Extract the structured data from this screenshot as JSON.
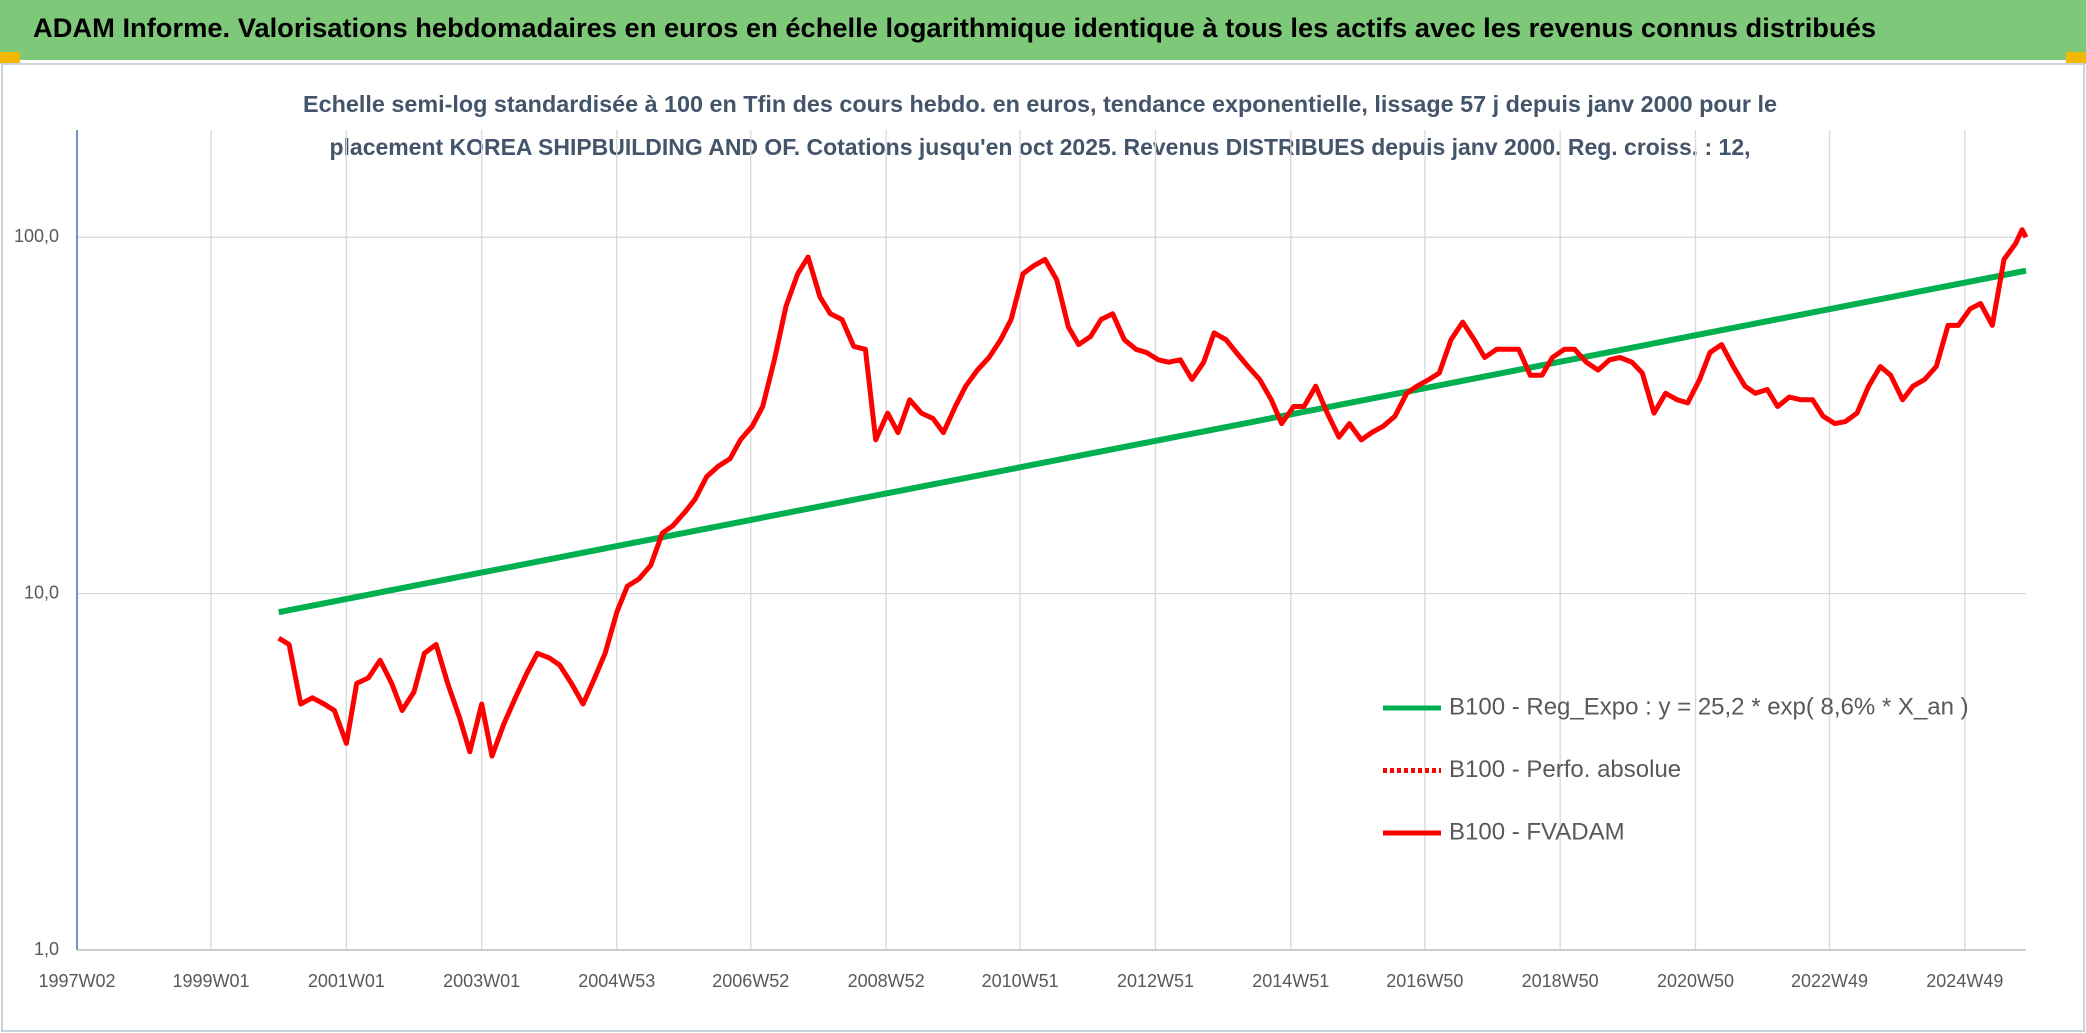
{
  "chart_data": {
    "type": "line",
    "title": "ADAM Informe. Valorisations hebdomadaires en euros en échelle logarithmique identique à tous les actifs avec les revenus connus distribués",
    "subtitle": [
      "Echelle semi-log standardisée à 100 en Tfin des cours hebdo. en euros, tendance exponentielle, lissage 57 j depuis janv 2000 pour le",
      "placement KOREA SHIPBUILDING AND OF. Cotations jusqu'en oct 2025. Revenus DISTRIBUES depuis janv 2000. Reg. croiss. : 12,"
    ],
    "xlim": [
      "1997W02",
      "2025W44"
    ],
    "xticks": [
      "1997W02",
      "1999W01",
      "2001W01",
      "2003W01",
      "2004W53",
      "2006W52",
      "2008W52",
      "2010W51",
      "2012W51",
      "2014W51",
      "2016W50",
      "2018W50",
      "2020W50",
      "2022W49",
      "2024W49"
    ],
    "ylim": [
      1,
      200
    ],
    "yticks": [
      {
        "value": 1,
        "label": "1,0"
      },
      {
        "value": 10,
        "label": "10,0"
      },
      {
        "value": 100,
        "label": "100,0"
      }
    ],
    "log_y": true,
    "grid": true,
    "legend": "right",
    "series": [
      {
        "name": "B100 - Reg_Expo : y = 25,2 * exp( 8,6% *  X_an )",
        "color": "#00b050",
        "style": "solid",
        "x": [
          "2000W01",
          "2025W44"
        ],
        "values": [
          8.87,
          80.6
        ]
      },
      {
        "name": "B100 - Perfo. absolue",
        "color": "#ff0000",
        "style": "dotted",
        "x": [],
        "values": []
      },
      {
        "name": "B100 - FVADAM",
        "color": "#ff0000",
        "style": "solid",
        "x": [
          "2000W01",
          "2000W09",
          "2000W18",
          "2000W27",
          "2000W36",
          "2000W44",
          "2001W01",
          "2001W09",
          "2001W18",
          "2001W27",
          "2001W36",
          "2001W44",
          "2002W01",
          "2002W09",
          "2002W18",
          "2002W27",
          "2002W36",
          "2002W44",
          "2003W01",
          "2003W09",
          "2003W18",
          "2003W27",
          "2003W36",
          "2003W44",
          "2004W01",
          "2004W09",
          "2004W18",
          "2004W27",
          "2004W36",
          "2004W44",
          "2005W01",
          "2005W09",
          "2005W18",
          "2005W27",
          "2005W36",
          "2005W44",
          "2006W01",
          "2006W09",
          "2006W18",
          "2006W27",
          "2006W36",
          "2006W44",
          "2007W01",
          "2007W09",
          "2007W18",
          "2007W27",
          "2007W36",
          "2007W44",
          "2008W01",
          "2008W09",
          "2008W18",
          "2008W27",
          "2008W36",
          "2008W44",
          "2009W01",
          "2009W09",
          "2009W18",
          "2009W27",
          "2009W36",
          "2009W44",
          "2010W01",
          "2010W09",
          "2010W18",
          "2010W27",
          "2010W36",
          "2010W44",
          "2011W01",
          "2011W09",
          "2011W18",
          "2011W27",
          "2011W36",
          "2011W44",
          "2012W01",
          "2012W09",
          "2012W18",
          "2012W27",
          "2012W36",
          "2012W44",
          "2013W01",
          "2013W09",
          "2013W18",
          "2013W27",
          "2013W36",
          "2013W44",
          "2014W01",
          "2014W09",
          "2014W18",
          "2014W27",
          "2014W36",
          "2014W44",
          "2015W01",
          "2015W09",
          "2015W18",
          "2015W27",
          "2015W36",
          "2015W44",
          "2016W01",
          "2016W09",
          "2016W18",
          "2016W27",
          "2016W36",
          "2016W44",
          "2017W01",
          "2017W09",
          "2017W18",
          "2017W27",
          "2017W36",
          "2017W44",
          "2018W01",
          "2018W09",
          "2018W18",
          "2018W27",
          "2018W36",
          "2018W44",
          "2019W01",
          "2019W09",
          "2019W18",
          "2019W27",
          "2019W36",
          "2019W44",
          "2020W01",
          "2020W09",
          "2020W18",
          "2020W27",
          "2020W36",
          "2020W44",
          "2021W01",
          "2021W09",
          "2021W18",
          "2021W27",
          "2021W36",
          "2021W44",
          "2022W01",
          "2022W09",
          "2022W18",
          "2022W27",
          "2022W36",
          "2022W44",
          "2023W01",
          "2023W09",
          "2023W18",
          "2023W27",
          "2023W36",
          "2023W44",
          "2024W01",
          "2024W09",
          "2024W18",
          "2024W27",
          "2024W36",
          "2024W44",
          "2025W01",
          "2025W09",
          "2025W18",
          "2025W27",
          "2025W36",
          "2025W41",
          "2025W44"
        ],
        "values": [
          7.5,
          7.2,
          4.9,
          5.1,
          4.9,
          4.7,
          3.8,
          5.6,
          5.8,
          6.5,
          5.6,
          4.7,
          5.3,
          6.8,
          7.2,
          5.6,
          4.5,
          3.6,
          4.9,
          3.5,
          4.3,
          5.1,
          6.0,
          6.8,
          6.6,
          6.3,
          5.6,
          4.9,
          5.8,
          6.8,
          8.9,
          10.5,
          11.0,
          12.0,
          14.8,
          15.5,
          16.9,
          18.4,
          21.3,
          22.8,
          23.9,
          27.0,
          29.5,
          33.5,
          45.3,
          64.0,
          79.0,
          88.0,
          68.0,
          61.0,
          58.8,
          49.4,
          48.5,
          27.0,
          32.1,
          28.3,
          35.0,
          32.1,
          31.0,
          28.3,
          33.5,
          38.2,
          42.4,
          46.0,
          51.6,
          58.8,
          79.0,
          83.0,
          86.7,
          76.0,
          56.0,
          50.0,
          52.7,
          58.8,
          61.0,
          51.6,
          48.5,
          47.5,
          45.3,
          44.6,
          45.3,
          39.9,
          44.6,
          53.9,
          51.6,
          47.5,
          43.4,
          39.9,
          35.0,
          30.0,
          33.5,
          33.5,
          38.2,
          32.1,
          27.5,
          30.0,
          27.0,
          28.3,
          29.5,
          31.5,
          36.5,
          38.2,
          39.9,
          41.6,
          51.6,
          57.8,
          51.6,
          46.0,
          48.5,
          48.5,
          48.5,
          41.0,
          41.0,
          46.0,
          48.5,
          48.5,
          44.6,
          42.4,
          45.3,
          46.0,
          44.6,
          41.6,
          32.1,
          36.5,
          35.0,
          34.3,
          39.9,
          47.5,
          50.0,
          43.4,
          38.2,
          36.5,
          37.4,
          33.5,
          35.6,
          35.0,
          35.0,
          31.5,
          30.0,
          30.4,
          32.1,
          38.2,
          43.4,
          41.0,
          35.0,
          38.2,
          39.9,
          43.4,
          56.6,
          56.6,
          63.0,
          65.2,
          56.6,
          86.7,
          96.0,
          105.0,
          100.0
        ]
      }
    ]
  }
}
